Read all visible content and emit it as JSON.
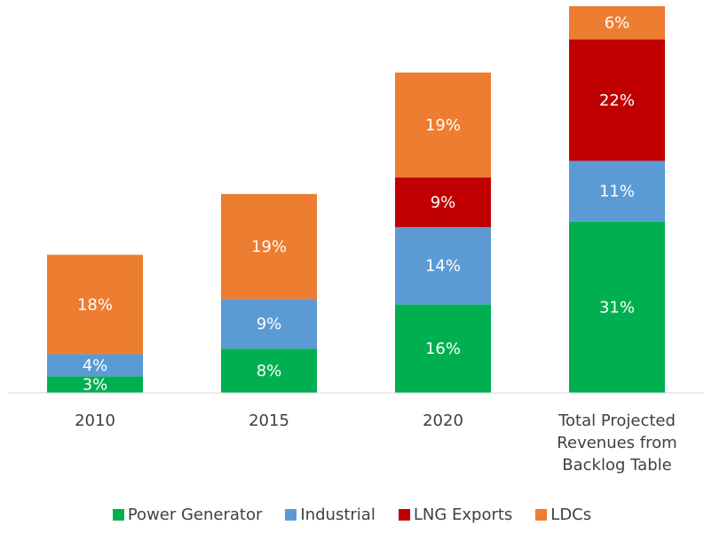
{
  "chart_data": {
    "type": "stacked_bar",
    "categories": [
      "2010",
      "2015",
      "2020",
      "Total Projected Revenues from Backlog Table"
    ],
    "series": [
      {
        "name": "Power Generator",
        "color": "#00b050",
        "values": [
          3,
          8,
          16,
          31
        ],
        "value_labels": [
          "3%",
          "8%",
          "16%",
          "31%"
        ]
      },
      {
        "name": "Industrial",
        "color": "#5b9bd5",
        "values": [
          4,
          9,
          14,
          11
        ],
        "value_labels": [
          "4%",
          "9%",
          "14%",
          "11%"
        ]
      },
      {
        "name": "LNG Exports",
        "color": "#c00000",
        "values": [
          null,
          null,
          9,
          22
        ],
        "value_labels": [
          null,
          null,
          "9%",
          "22%"
        ]
      },
      {
        "name": "LDCs",
        "color": "#ed7d31",
        "values": [
          18,
          19,
          19,
          6
        ],
        "value_labels": [
          "18%",
          "19%",
          "19%",
          "6%"
        ]
      }
    ],
    "legend": "bottom"
  }
}
